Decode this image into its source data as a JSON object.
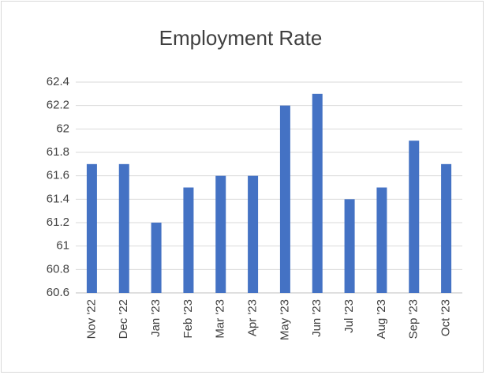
{
  "chart_data": {
    "type": "bar",
    "title": "Employment Rate",
    "categories": [
      "Nov '22",
      "Dec '22",
      "Jan '23",
      "Feb '23",
      "Mar '23",
      "Apr '23",
      "May '23",
      "Jun '23",
      "Jul '23",
      "Aug '23",
      "Sep '23",
      "Oct '23"
    ],
    "values": [
      61.7,
      61.7,
      61.2,
      61.5,
      61.6,
      61.6,
      62.2,
      62.3,
      61.4,
      61.5,
      61.9,
      61.7
    ],
    "color": "#4472c4",
    "ylim": [
      60.6,
      62.4
    ],
    "yticks": [
      60.6,
      60.8,
      61,
      61.2,
      61.4,
      61.6,
      61.8,
      62,
      62.2,
      62.4
    ],
    "grid": true
  }
}
